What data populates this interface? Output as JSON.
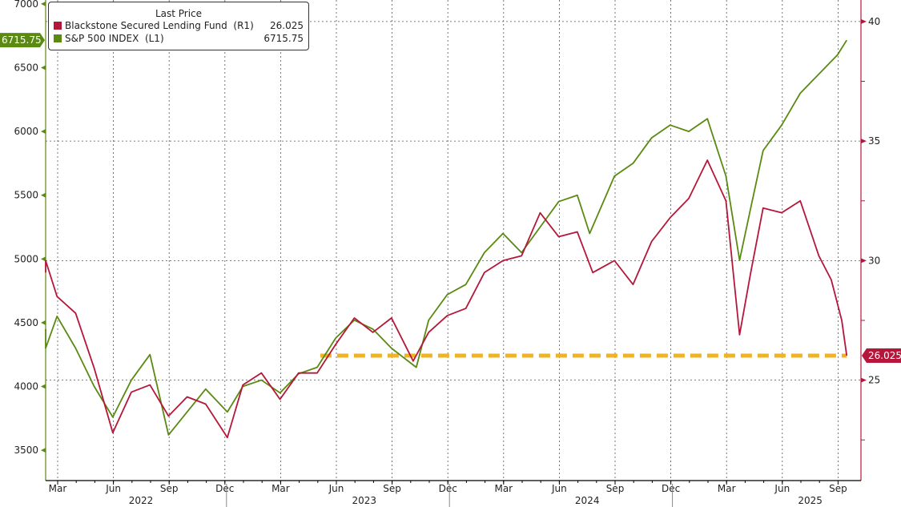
{
  "chart_data": {
    "type": "line",
    "legend_title": "Last Price",
    "legend_placement": "top-left",
    "series": [
      {
        "name": "Blackstone Secured Lending Fund",
        "axis": "R1",
        "last": "26.025",
        "color": "#b5173a",
        "x": [
          "2022-02-01",
          "2022-02-20",
          "2022-03-15",
          "2022-04-15",
          "2022-05-15",
          "2022-06-15",
          "2022-07-15",
          "2022-08-15",
          "2022-09-15",
          "2022-10-15",
          "2022-11-15",
          "2022-12-20",
          "2023-01-15",
          "2023-02-15",
          "2023-03-15",
          "2023-04-15",
          "2023-05-15",
          "2023-06-15",
          "2023-07-15",
          "2023-08-15",
          "2023-09-15",
          "2023-10-20",
          "2023-11-15",
          "2023-12-15",
          "2024-01-15",
          "2024-02-15",
          "2024-03-15",
          "2024-04-15",
          "2024-05-15",
          "2024-06-15",
          "2024-07-15",
          "2024-08-10",
          "2024-09-15",
          "2024-10-15",
          "2024-11-15",
          "2024-12-15",
          "2025-01-15",
          "2025-02-15",
          "2025-03-15",
          "2025-04-07",
          "2025-04-25",
          "2025-05-15",
          "2025-06-15",
          "2025-07-15",
          "2025-08-15",
          "2025-09-05",
          "2025-09-22",
          "2025-09-30"
        ],
        "values": [
          29.5,
          30.0,
          28.5,
          27.8,
          25.5,
          22.8,
          24.5,
          24.8,
          23.5,
          24.3,
          24.0,
          22.6,
          24.8,
          25.3,
          24.2,
          25.3,
          25.3,
          26.5,
          27.6,
          27.0,
          27.6,
          25.8,
          27.0,
          27.7,
          28.0,
          29.5,
          30.0,
          30.2,
          32.0,
          31.0,
          31.2,
          29.5,
          30.0,
          29.0,
          30.8,
          31.8,
          32.6,
          34.2,
          32.5,
          26.9,
          29.5,
          32.2,
          32.0,
          32.5,
          30.2,
          29.2,
          27.5,
          26.025
        ]
      },
      {
        "name": "S&P 500 INDEX",
        "axis": "L1",
        "last": "6715.75",
        "color": "#5a8a12",
        "x": [
          "2022-02-01",
          "2022-02-20",
          "2022-03-15",
          "2022-04-15",
          "2022-05-15",
          "2022-06-15",
          "2022-07-15",
          "2022-08-15",
          "2022-09-15",
          "2022-10-15",
          "2022-11-15",
          "2022-12-20",
          "2023-01-15",
          "2023-02-15",
          "2023-03-15",
          "2023-04-15",
          "2023-05-15",
          "2023-06-15",
          "2023-07-15",
          "2023-08-15",
          "2023-09-15",
          "2023-10-25",
          "2023-11-15",
          "2023-12-15",
          "2024-01-15",
          "2024-02-15",
          "2024-03-15",
          "2024-04-15",
          "2024-05-15",
          "2024-06-15",
          "2024-07-15",
          "2024-08-05",
          "2024-09-15",
          "2024-10-15",
          "2024-11-15",
          "2024-12-15",
          "2025-01-15",
          "2025-02-15",
          "2025-03-15",
          "2025-04-07",
          "2025-04-25",
          "2025-05-15",
          "2025-06-15",
          "2025-07-15",
          "2025-08-15",
          "2025-09-15",
          "2025-09-30"
        ],
        "values": [
          4450,
          4300,
          4550,
          4300,
          4000,
          3760,
          4050,
          4250,
          3620,
          3800,
          3980,
          3800,
          4000,
          4050,
          3950,
          4100,
          4150,
          4380,
          4520,
          4450,
          4300,
          4150,
          4520,
          4720,
          4800,
          5050,
          5200,
          5050,
          5250,
          5450,
          5500,
          5200,
          5650,
          5750,
          5950,
          6050,
          6000,
          6100,
          5650,
          4990,
          5400,
          5850,
          6050,
          6300,
          6450,
          6600,
          6715.75
        ]
      }
    ],
    "y_left": {
      "ticks": [
        "3500",
        "4000",
        "4500",
        "5000",
        "5500",
        "6000",
        "6500",
        "7000"
      ],
      "range": [
        3262,
        7031
      ]
    },
    "y_right": {
      "ticks": [
        "25",
        "30",
        "35",
        "40"
      ],
      "range": [
        20.8,
        40.9
      ]
    },
    "x_months": [
      "Mar",
      "Jun",
      "Sep",
      "Dec",
      "Mar",
      "Jun",
      "Sep",
      "Dec",
      "Mar",
      "Jun",
      "Sep",
      "Dec",
      "Mar",
      "Jun",
      "Sep"
    ],
    "x_years": [
      "2022",
      "2023",
      "2024",
      "2025"
    ],
    "reference_line": {
      "level": 26.025,
      "from": "2023-05-20",
      "to": "2025-09-30",
      "color": "#f0b323"
    }
  }
}
